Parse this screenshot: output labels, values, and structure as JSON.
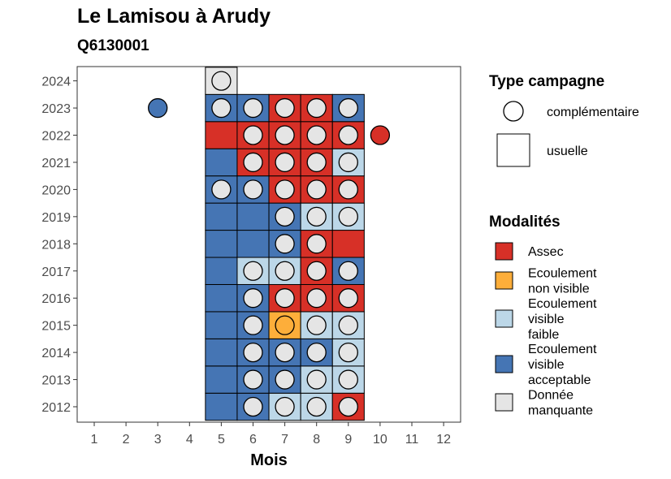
{
  "header": {
    "title": "Le Lamisou à Arudy",
    "subtitle": "Q6130001"
  },
  "chart_data": {
    "type": "heatmap",
    "xlabel": "Mois",
    "ylabel": "",
    "x": [
      1,
      2,
      3,
      4,
      5,
      6,
      7,
      8,
      9,
      10,
      11,
      12
    ],
    "y": [
      2012,
      2013,
      2014,
      2015,
      2016,
      2017,
      2018,
      2019,
      2020,
      2021,
      2022,
      2023,
      2024
    ],
    "legend_type": {
      "title": "Type campagne",
      "items": [
        {
          "label": "complémentaire",
          "shape": "circle"
        },
        {
          "label": "usuelle",
          "shape": "square"
        }
      ]
    },
    "legend_modalites": {
      "title": "Modalités",
      "items": [
        {
          "key": "assec",
          "lines": [
            "Assec"
          ],
          "color": "#d73027"
        },
        {
          "key": "nonvis",
          "lines": [
            "Ecoulement",
            "non visible"
          ],
          "color": "#fdae3a"
        },
        {
          "key": "faible",
          "lines": [
            "Ecoulement",
            "visible",
            "faible"
          ],
          "color": "#bcd7e8"
        },
        {
          "key": "accept",
          "lines": [
            "Ecoulement",
            "visible",
            "acceptable"
          ],
          "color": "#4575b4"
        },
        {
          "key": "manq",
          "lines": [
            "Donnée",
            "manquante"
          ],
          "color": "#e5e5e5"
        }
      ]
    },
    "squares": [
      {
        "year": 2012,
        "month": 5,
        "mod": "accept"
      },
      {
        "year": 2012,
        "month": 6,
        "mod": "accept"
      },
      {
        "year": 2012,
        "month": 7,
        "mod": "faible"
      },
      {
        "year": 2012,
        "month": 8,
        "mod": "faible"
      },
      {
        "year": 2012,
        "month": 9,
        "mod": "assec"
      },
      {
        "year": 2013,
        "month": 5,
        "mod": "accept"
      },
      {
        "year": 2013,
        "month": 6,
        "mod": "accept"
      },
      {
        "year": 2013,
        "month": 7,
        "mod": "accept"
      },
      {
        "year": 2013,
        "month": 8,
        "mod": "faible"
      },
      {
        "year": 2013,
        "month": 9,
        "mod": "faible"
      },
      {
        "year": 2014,
        "month": 5,
        "mod": "accept"
      },
      {
        "year": 2014,
        "month": 6,
        "mod": "accept"
      },
      {
        "year": 2014,
        "month": 7,
        "mod": "accept"
      },
      {
        "year": 2014,
        "month": 8,
        "mod": "accept"
      },
      {
        "year": 2014,
        "month": 9,
        "mod": "faible"
      },
      {
        "year": 2015,
        "month": 5,
        "mod": "accept"
      },
      {
        "year": 2015,
        "month": 6,
        "mod": "accept"
      },
      {
        "year": 2015,
        "month": 7,
        "mod": "nonvis"
      },
      {
        "year": 2015,
        "month": 8,
        "mod": "faible"
      },
      {
        "year": 2015,
        "month": 9,
        "mod": "faible"
      },
      {
        "year": 2016,
        "month": 5,
        "mod": "accept"
      },
      {
        "year": 2016,
        "month": 6,
        "mod": "accept"
      },
      {
        "year": 2016,
        "month": 7,
        "mod": "assec"
      },
      {
        "year": 2016,
        "month": 8,
        "mod": "assec"
      },
      {
        "year": 2016,
        "month": 9,
        "mod": "assec"
      },
      {
        "year": 2017,
        "month": 5,
        "mod": "accept"
      },
      {
        "year": 2017,
        "month": 6,
        "mod": "faible"
      },
      {
        "year": 2017,
        "month": 7,
        "mod": "faible"
      },
      {
        "year": 2017,
        "month": 8,
        "mod": "assec"
      },
      {
        "year": 2017,
        "month": 9,
        "mod": "accept"
      },
      {
        "year": 2018,
        "month": 5,
        "mod": "accept"
      },
      {
        "year": 2018,
        "month": 6,
        "mod": "accept"
      },
      {
        "year": 2018,
        "month": 7,
        "mod": "accept"
      },
      {
        "year": 2018,
        "month": 8,
        "mod": "assec"
      },
      {
        "year": 2018,
        "month": 9,
        "mod": "assec"
      },
      {
        "year": 2019,
        "month": 5,
        "mod": "accept"
      },
      {
        "year": 2019,
        "month": 6,
        "mod": "accept"
      },
      {
        "year": 2019,
        "month": 7,
        "mod": "accept"
      },
      {
        "year": 2019,
        "month": 8,
        "mod": "faible"
      },
      {
        "year": 2019,
        "month": 9,
        "mod": "faible"
      },
      {
        "year": 2020,
        "month": 5,
        "mod": "accept"
      },
      {
        "year": 2020,
        "month": 6,
        "mod": "accept"
      },
      {
        "year": 2020,
        "month": 7,
        "mod": "assec"
      },
      {
        "year": 2020,
        "month": 8,
        "mod": "assec"
      },
      {
        "year": 2020,
        "month": 9,
        "mod": "assec"
      },
      {
        "year": 2021,
        "month": 5,
        "mod": "accept"
      },
      {
        "year": 2021,
        "month": 6,
        "mod": "assec"
      },
      {
        "year": 2021,
        "month": 7,
        "mod": "assec"
      },
      {
        "year": 2021,
        "month": 8,
        "mod": "assec"
      },
      {
        "year": 2021,
        "month": 9,
        "mod": "faible"
      },
      {
        "year": 2022,
        "month": 5,
        "mod": "assec"
      },
      {
        "year": 2022,
        "month": 6,
        "mod": "assec"
      },
      {
        "year": 2022,
        "month": 7,
        "mod": "assec"
      },
      {
        "year": 2022,
        "month": 8,
        "mod": "assec"
      },
      {
        "year": 2022,
        "month": 9,
        "mod": "assec"
      },
      {
        "year": 2023,
        "month": 5,
        "mod": "accept"
      },
      {
        "year": 2023,
        "month": 6,
        "mod": "accept"
      },
      {
        "year": 2023,
        "month": 7,
        "mod": "assec"
      },
      {
        "year": 2023,
        "month": 8,
        "mod": "assec"
      },
      {
        "year": 2023,
        "month": 9,
        "mod": "accept"
      },
      {
        "year": 2024,
        "month": 5,
        "mod": "manq"
      }
    ],
    "circles": [
      {
        "year": 2012,
        "month": 6,
        "mod": "manq"
      },
      {
        "year": 2012,
        "month": 7,
        "mod": "manq"
      },
      {
        "year": 2012,
        "month": 8,
        "mod": "manq"
      },
      {
        "year": 2012,
        "month": 9,
        "mod": "manq"
      },
      {
        "year": 2013,
        "month": 6,
        "mod": "manq"
      },
      {
        "year": 2013,
        "month": 7,
        "mod": "manq"
      },
      {
        "year": 2013,
        "month": 8,
        "mod": "manq"
      },
      {
        "year": 2013,
        "month": 9,
        "mod": "manq"
      },
      {
        "year": 2014,
        "month": 6,
        "mod": "manq"
      },
      {
        "year": 2014,
        "month": 7,
        "mod": "manq"
      },
      {
        "year": 2014,
        "month": 8,
        "mod": "manq"
      },
      {
        "year": 2014,
        "month": 9,
        "mod": "manq"
      },
      {
        "year": 2015,
        "month": 6,
        "mod": "manq"
      },
      {
        "year": 2015,
        "month": 7,
        "mod": "nonvis"
      },
      {
        "year": 2015,
        "month": 8,
        "mod": "manq"
      },
      {
        "year": 2015,
        "month": 9,
        "mod": "manq"
      },
      {
        "year": 2016,
        "month": 6,
        "mod": "manq"
      },
      {
        "year": 2016,
        "month": 7,
        "mod": "manq"
      },
      {
        "year": 2016,
        "month": 8,
        "mod": "manq"
      },
      {
        "year": 2016,
        "month": 9,
        "mod": "manq"
      },
      {
        "year": 2017,
        "month": 6,
        "mod": "manq"
      },
      {
        "year": 2017,
        "month": 7,
        "mod": "manq"
      },
      {
        "year": 2017,
        "month": 8,
        "mod": "manq"
      },
      {
        "year": 2017,
        "month": 9,
        "mod": "manq"
      },
      {
        "year": 2018,
        "month": 7,
        "mod": "manq"
      },
      {
        "year": 2018,
        "month": 8,
        "mod": "manq"
      },
      {
        "year": 2019,
        "month": 7,
        "mod": "manq"
      },
      {
        "year": 2019,
        "month": 8,
        "mod": "manq"
      },
      {
        "year": 2019,
        "month": 9,
        "mod": "manq"
      },
      {
        "year": 2020,
        "month": 5,
        "mod": "manq"
      },
      {
        "year": 2020,
        "month": 6,
        "mod": "manq"
      },
      {
        "year": 2020,
        "month": 7,
        "mod": "manq"
      },
      {
        "year": 2020,
        "month": 8,
        "mod": "manq"
      },
      {
        "year": 2020,
        "month": 9,
        "mod": "manq"
      },
      {
        "year": 2021,
        "month": 6,
        "mod": "manq"
      },
      {
        "year": 2021,
        "month": 7,
        "mod": "manq"
      },
      {
        "year": 2021,
        "month": 8,
        "mod": "manq"
      },
      {
        "year": 2021,
        "month": 9,
        "mod": "manq"
      },
      {
        "year": 2022,
        "month": 6,
        "mod": "manq"
      },
      {
        "year": 2022,
        "month": 7,
        "mod": "manq"
      },
      {
        "year": 2022,
        "month": 8,
        "mod": "manq"
      },
      {
        "year": 2022,
        "month": 9,
        "mod": "manq"
      },
      {
        "year": 2022,
        "month": 10,
        "mod": "assec"
      },
      {
        "year": 2023,
        "month": 3,
        "mod": "accept"
      },
      {
        "year": 2023,
        "month": 5,
        "mod": "manq"
      },
      {
        "year": 2023,
        "month": 6,
        "mod": "manq"
      },
      {
        "year": 2023,
        "month": 7,
        "mod": "manq"
      },
      {
        "year": 2023,
        "month": 8,
        "mod": "manq"
      },
      {
        "year": 2023,
        "month": 9,
        "mod": "manq"
      },
      {
        "year": 2024,
        "month": 5,
        "mod": "manq"
      }
    ]
  }
}
